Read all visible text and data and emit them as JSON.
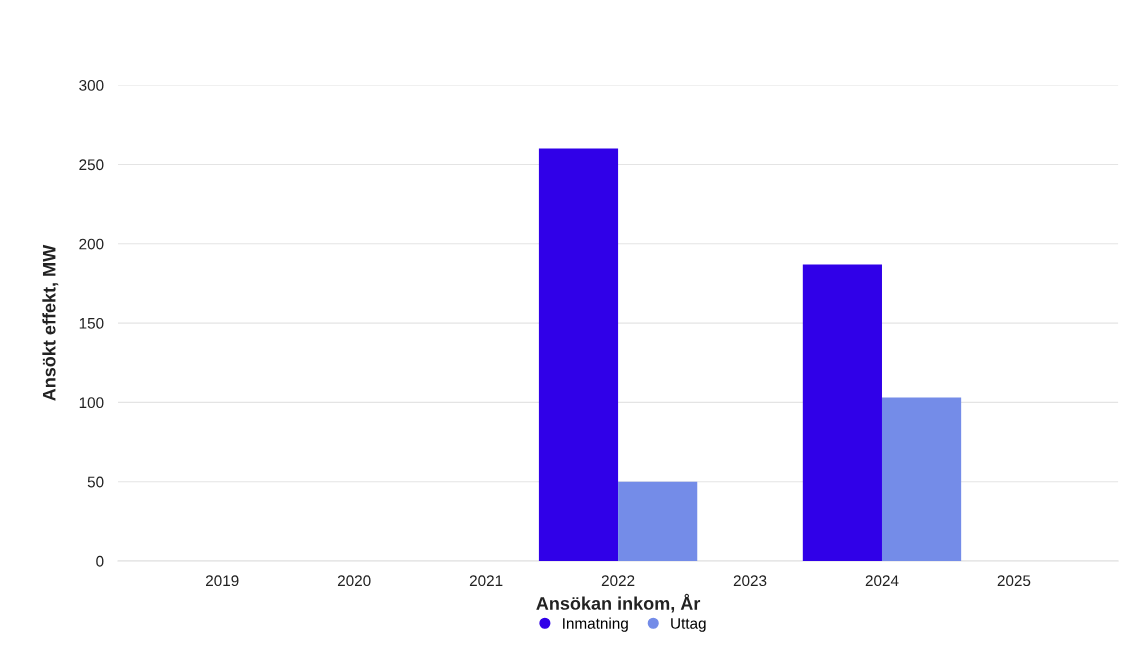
{
  "chart_data": {
    "type": "bar",
    "xlabel": "Ansökan inkom, År",
    "ylabel": "Ansökt effekt, MW",
    "categories": [
      "2019",
      "2020",
      "2021",
      "2022",
      "2023",
      "2024",
      "2025"
    ],
    "series": [
      {
        "name": "Inmatning",
        "color": "#3000e8",
        "values": [
          null,
          null,
          null,
          260,
          null,
          187,
          null
        ]
      },
      {
        "name": "Uttag",
        "color": "#748ce8",
        "values": [
          null,
          null,
          null,
          50,
          null,
          103,
          null
        ]
      }
    ],
    "ylim": [
      0,
      300
    ],
    "yticks": [
      0,
      50,
      100,
      150,
      200,
      250,
      300
    ],
    "grid": "y",
    "legend": "bottom"
  }
}
